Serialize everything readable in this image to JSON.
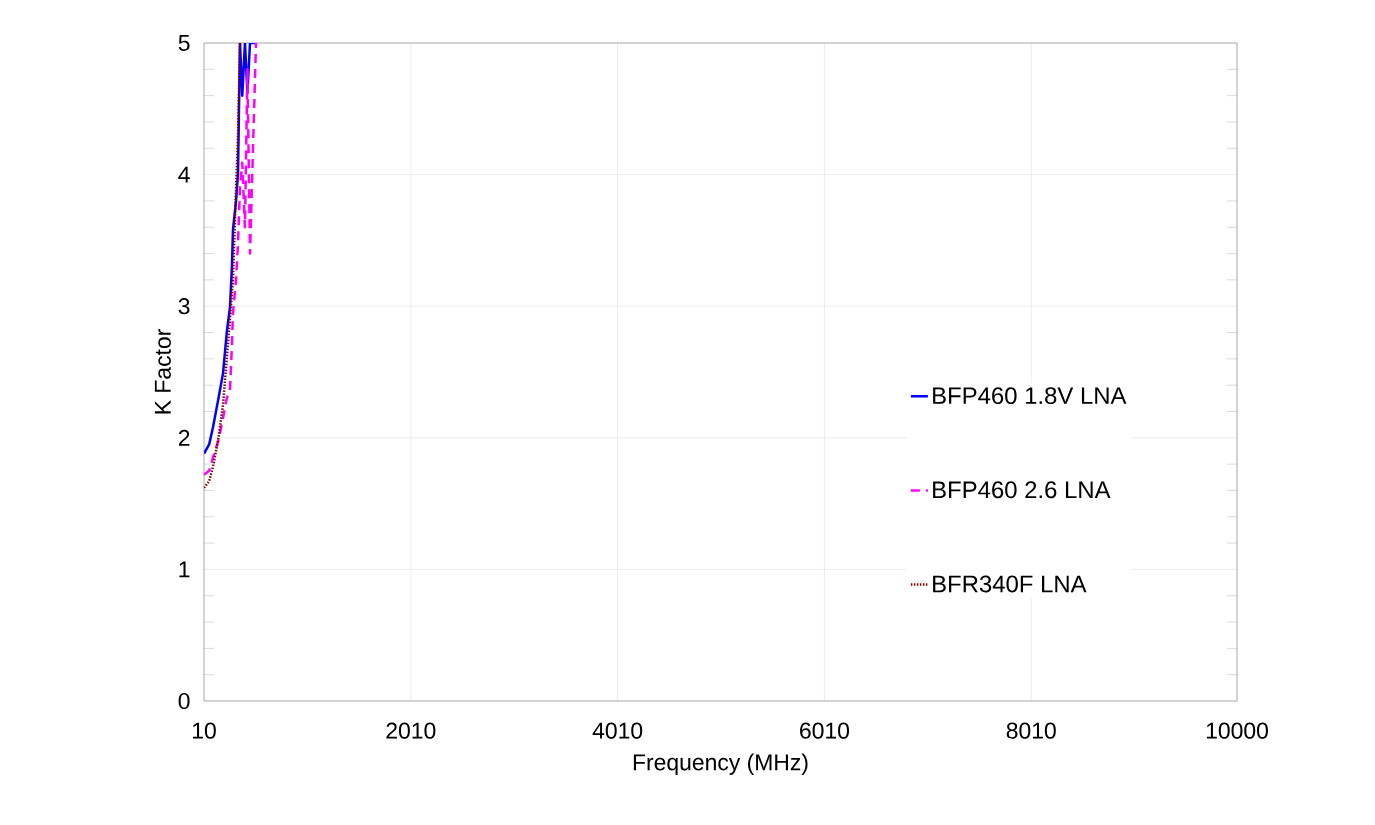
{
  "chart_data": {
    "type": "line",
    "xlabel": "Frequency (MHz)",
    "ylabel": "K Factor",
    "x": [
      10,
      60,
      97,
      150,
      194,
      230,
      261,
      280,
      290,
      320,
      339,
      358,
      380,
      406,
      430,
      455,
      513
    ],
    "series": [
      {
        "name": "BFP460 1.8V LNA",
        "color": "#0000ff",
        "line_style": "solid",
        "values": [
          1.88,
          1.95,
          2.08,
          2.3,
          2.49,
          2.8,
          2.99,
          3.3,
          3.58,
          3.8,
          4.01,
          5,
          4.6,
          5,
          4.62,
          5,
          5
        ]
      },
      {
        "name": "BFP460 2.6 LNA",
        "color": "#ff00ff",
        "line_style": "dashed",
        "values": [
          1.72,
          1.75,
          1.85,
          1.98,
          2.15,
          2.3,
          2.36,
          2.7,
          2.95,
          3.2,
          3.48,
          3.9,
          4.09,
          3.6,
          4.8,
          3.4,
          5
        ]
      },
      {
        "name": "BFR340F LNA",
        "color": "#800000",
        "line_style": "dotted",
        "values": [
          1.62,
          1.67,
          1.78,
          2.0,
          2.25,
          2.6,
          2.9,
          3.1,
          3.2,
          3.9,
          4.3,
          5,
          null,
          null,
          null,
          null,
          null
        ]
      }
    ],
    "xlim": [
      10,
      10000
    ],
    "xticks": [
      10,
      2010,
      4010,
      6010,
      8010,
      10000
    ],
    "ylim": [
      0,
      5
    ],
    "yticks": [
      0,
      1,
      2,
      3,
      4,
      5
    ],
    "grid": true,
    "legend": "right"
  }
}
